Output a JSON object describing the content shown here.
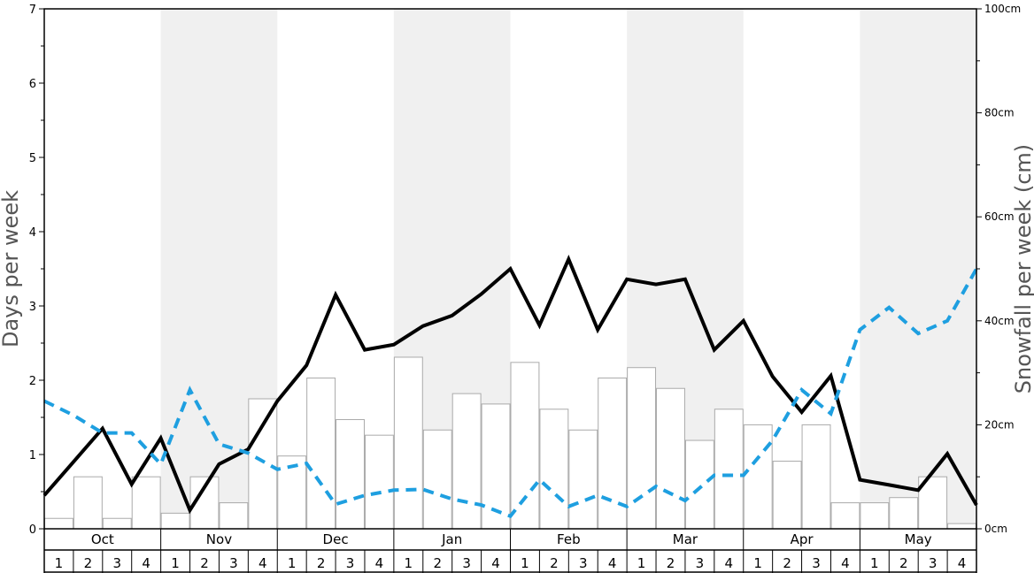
{
  "chart_data": {
    "type": "bar",
    "months": [
      "Oct",
      "Nov",
      "Dec",
      "Jan",
      "Feb",
      "Mar",
      "Apr",
      "May"
    ],
    "week_labels": [
      "1",
      "2",
      "3",
      "4"
    ],
    "left_axis": {
      "label": "Days per week",
      "ylim": [
        0,
        7
      ],
      "ticks": [
        "0",
        "1",
        "2",
        "3",
        "4",
        "5",
        "6",
        "7"
      ]
    },
    "right_axis": {
      "label": "Snowfall per week (cm)",
      "ylim": [
        0,
        100
      ],
      "ticks": [
        "0cm",
        "20cm",
        "40cm",
        "60cm",
        "80cm",
        "100cm"
      ]
    },
    "series": [
      {
        "type": "bar",
        "axis": "right",
        "color": "#ffffff",
        "stroke": "#aaaaaa",
        "values": [
          2,
          10,
          2,
          10,
          3,
          10,
          5,
          25,
          14,
          29,
          21,
          18,
          33,
          19,
          26,
          24,
          32,
          23,
          19,
          29,
          31,
          27,
          17,
          23,
          20,
          13,
          20,
          5,
          5,
          6,
          10,
          1
        ]
      },
      {
        "type": "line",
        "axis": "left",
        "color": "#000000",
        "style": "solid",
        "values": [
          0.45,
          0.9,
          1.35,
          0.6,
          1.22,
          0.25,
          0.87,
          1.07,
          1.72,
          2.2,
          3.15,
          2.41,
          2.48,
          2.73,
          2.87,
          3.16,
          3.5,
          2.74,
          3.63,
          2.68,
          3.36,
          3.29,
          3.36,
          2.41,
          2.8,
          2.05,
          1.57,
          2.06,
          0.66,
          0.59,
          0.52,
          1.01,
          0.32
        ]
      },
      {
        "type": "line",
        "axis": "left",
        "color": "#1e9fe0",
        "style": "dashed",
        "values": [
          1.72,
          1.53,
          1.29,
          1.29,
          0.87,
          1.87,
          1.14,
          1.02,
          0.8,
          0.88,
          0.33,
          0.45,
          0.52,
          0.53,
          0.4,
          0.32,
          0.17,
          0.66,
          0.3,
          0.45,
          0.3,
          0.57,
          0.38,
          0.72,
          0.72,
          1.19,
          1.87,
          1.55,
          2.68,
          2.98,
          2.63,
          2.8,
          3.5
        ]
      }
    ],
    "shaded_months": [
      "Nov",
      "Jan",
      "Mar",
      "May"
    ],
    "shade_color": "#f0f0f0",
    "grid": false
  }
}
